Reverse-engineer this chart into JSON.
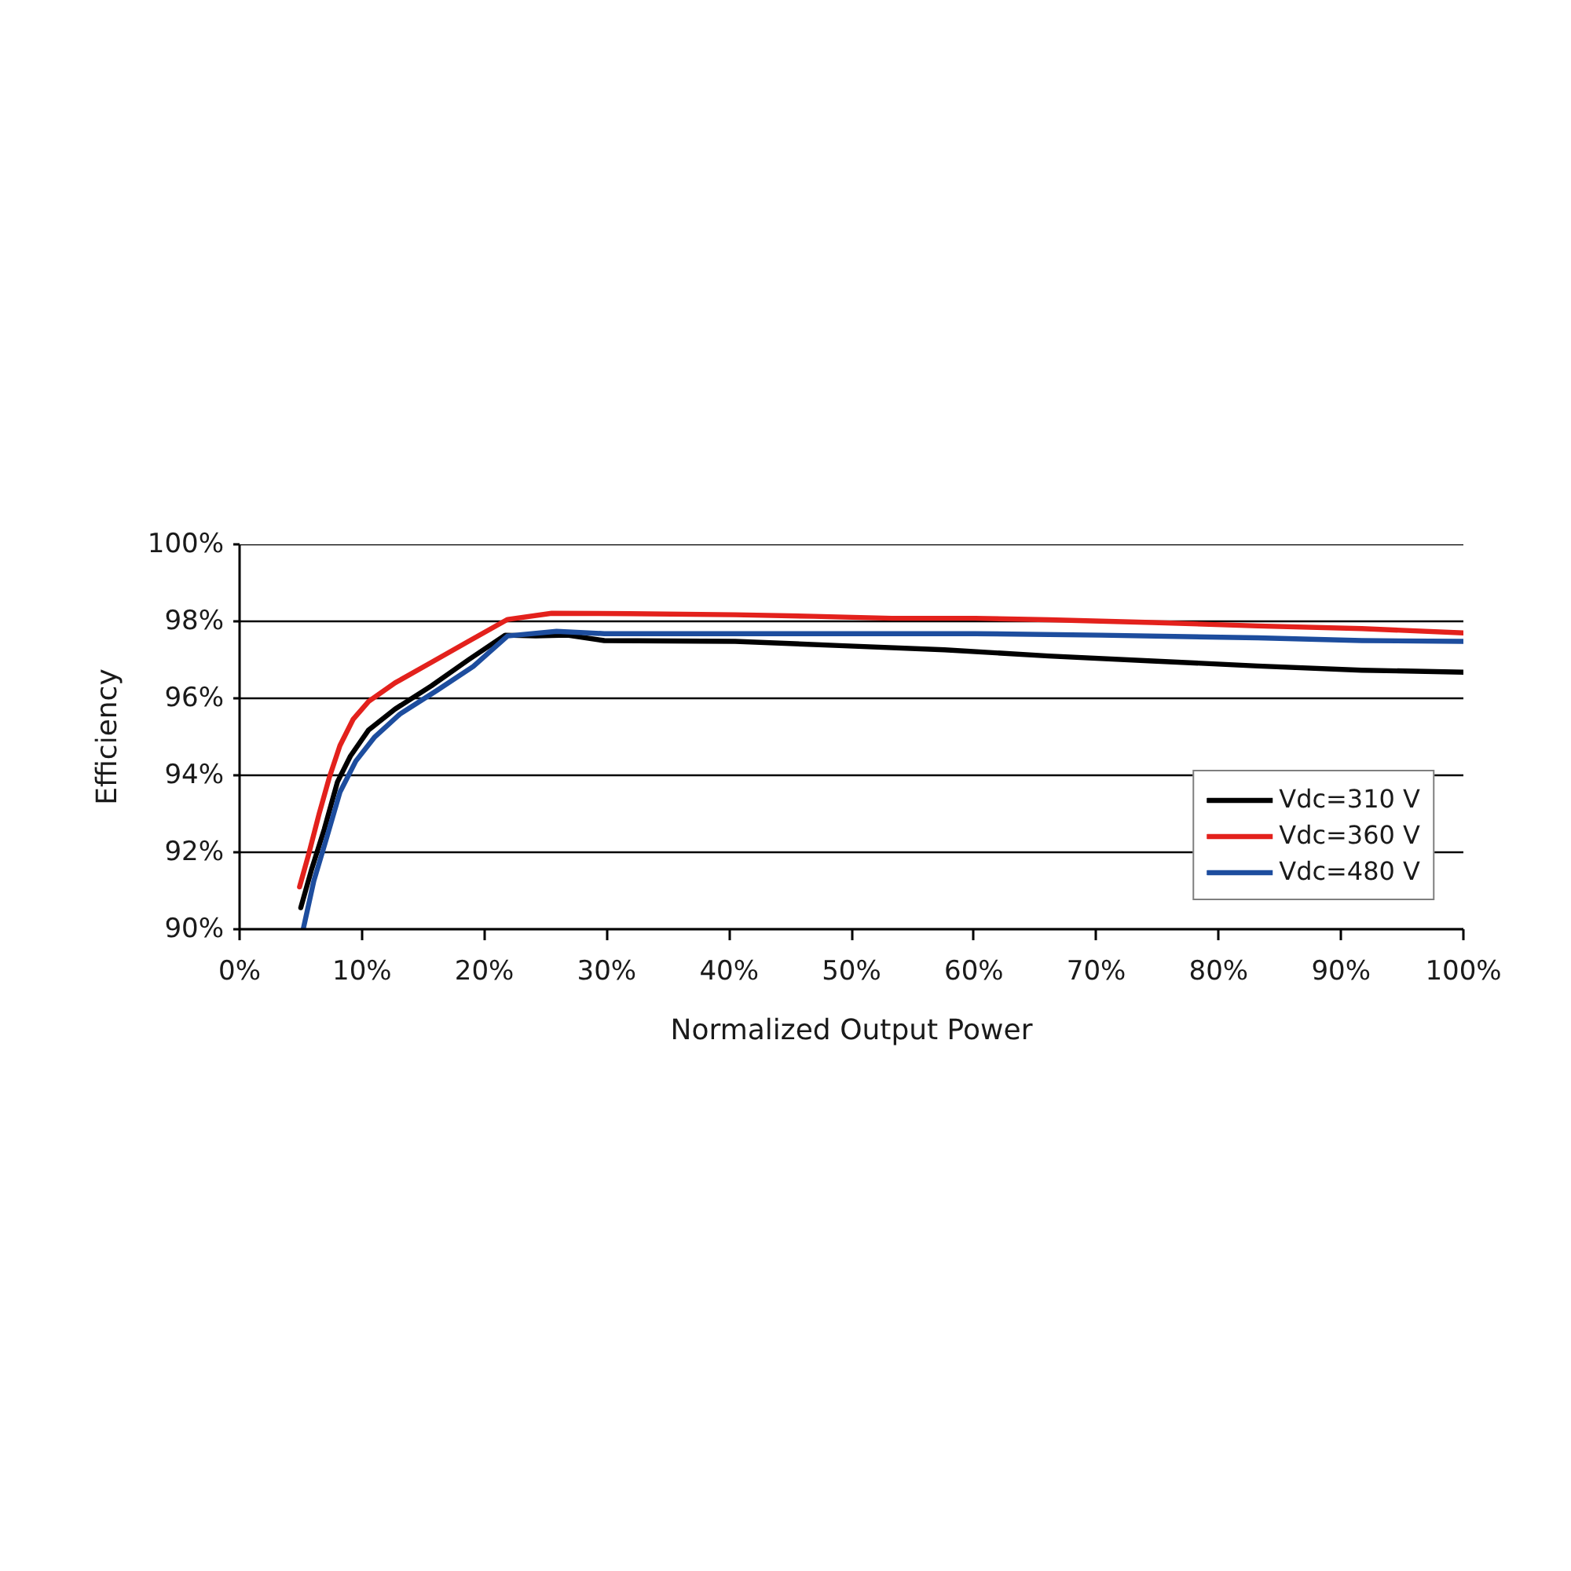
{
  "chart_data": {
    "type": "line",
    "xlabel": "Normalized Output Power",
    "ylabel": "Efficiency",
    "xlim": [
      0,
      100
    ],
    "ylim": [
      90,
      100
    ],
    "xticks": [
      {
        "value": 0,
        "label": "0%"
      },
      {
        "value": 10,
        "label": "10%"
      },
      {
        "value": 20,
        "label": "20%"
      },
      {
        "value": 30,
        "label": "30%"
      },
      {
        "value": 40,
        "label": "40%"
      },
      {
        "value": 50,
        "label": "50%"
      },
      {
        "value": 60,
        "label": "60%"
      },
      {
        "value": 70,
        "label": "70%"
      },
      {
        "value": 80,
        "label": "80%"
      },
      {
        "value": 90,
        "label": "90%"
      },
      {
        "value": 100,
        "label": "100%"
      }
    ],
    "yticks": [
      {
        "value": 90,
        "label": "90%"
      },
      {
        "value": 92,
        "label": "92%"
      },
      {
        "value": 94,
        "label": "94%"
      },
      {
        "value": 96,
        "label": "96%"
      },
      {
        "value": 98,
        "label": "98%"
      },
      {
        "value": 100,
        "label": "100%"
      }
    ],
    "grid": "y",
    "legend": "bottom right",
    "series": [
      {
        "name": "Vdc=310 V",
        "color": "#000000",
        "x": [
          5.0,
          5.86,
          6.92,
          8.0,
          9.06,
          10.55,
          12.7,
          15.7,
          18.7,
          21.7,
          24.2,
          26.8,
          29.8,
          40.5,
          49.0,
          57.6,
          66.1,
          74.6,
          83.2,
          91.7,
          100
        ],
        "values": [
          90.56,
          91.53,
          92.6,
          93.83,
          94.5,
          95.18,
          95.72,
          96.33,
          97.0,
          97.64,
          97.62,
          97.64,
          97.5,
          97.48,
          97.37,
          97.26,
          97.1,
          96.97,
          96.84,
          96.73,
          96.68
        ]
      },
      {
        "name": "Vdc=360 V",
        "color": "#e3211c",
        "x": [
          4.9,
          5.64,
          6.5,
          7.35,
          8.2,
          9.27,
          10.55,
          12.7,
          15.7,
          18.7,
          21.9,
          25.5,
          31.9,
          40.5,
          46.9,
          53.3,
          60.1,
          66.1,
          74.6,
          83.2,
          91.7,
          100
        ],
        "values": [
          91.1,
          91.94,
          93.0,
          93.96,
          94.77,
          95.45,
          95.92,
          96.4,
          96.94,
          97.48,
          98.05,
          98.21,
          98.2,
          98.17,
          98.13,
          98.08,
          98.08,
          98.04,
          97.97,
          97.88,
          97.81,
          97.7
        ]
      },
      {
        "name": "Vdc=480 V",
        "color": "#1d4d9e",
        "x": [
          5.2,
          6.07,
          7.14,
          8.2,
          9.5,
          11.0,
          13.1,
          16.1,
          19.1,
          21.9,
          25.9,
          29.8,
          40.5,
          50.0,
          60.1,
          70.4,
          83.2,
          91.7,
          100
        ],
        "values": [
          90.0,
          91.26,
          92.4,
          93.56,
          94.37,
          94.98,
          95.59,
          96.2,
          96.83,
          97.62,
          97.74,
          97.68,
          97.68,
          97.68,
          97.68,
          97.64,
          97.57,
          97.5,
          97.48
        ]
      }
    ]
  }
}
